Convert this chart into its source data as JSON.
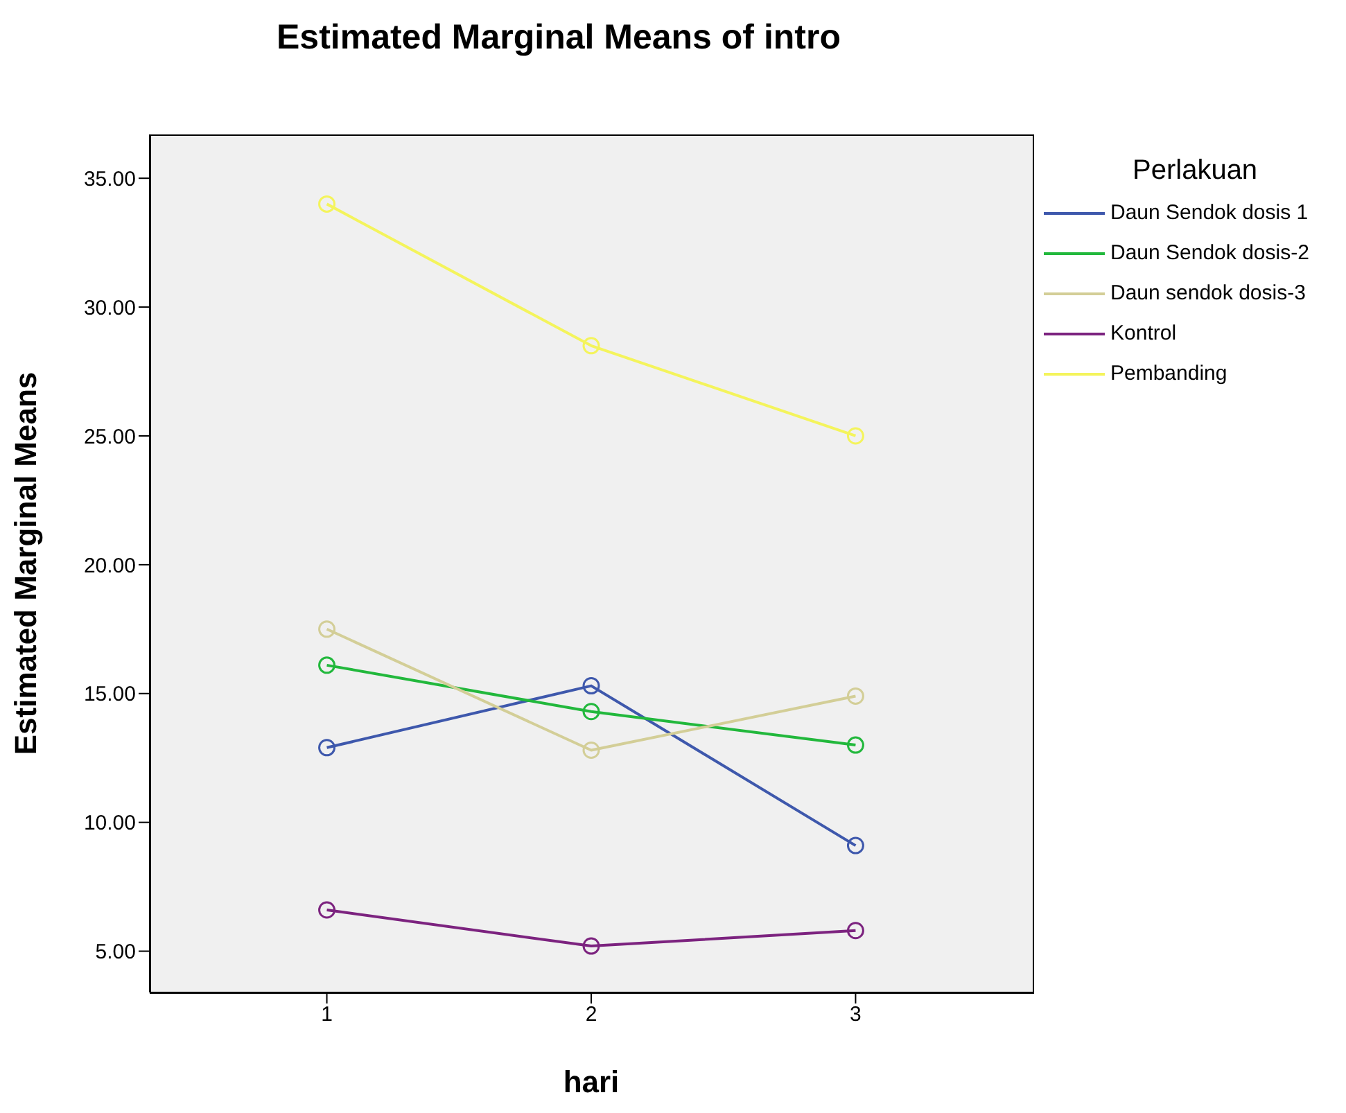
{
  "chart_data": {
    "type": "line",
    "title": "Estimated Marginal Means of intro",
    "xlabel": "hari",
    "ylabel": "Estimated Marginal Means",
    "legend_title": "Perlakuan",
    "legend": "right",
    "marker": "circle",
    "line_style": "solid",
    "x": [
      1,
      2,
      3
    ],
    "xlim": [
      0.33,
      3.67
    ],
    "xticks": [
      1,
      2,
      3
    ],
    "ylim": [
      3.4,
      36.7
    ],
    "yticks": [
      {
        "value": 5,
        "label": "5.00"
      },
      {
        "value": 10,
        "label": "10.00"
      },
      {
        "value": 15,
        "label": "15.00"
      },
      {
        "value": 20,
        "label": "20.00"
      },
      {
        "value": 25,
        "label": "25.00"
      },
      {
        "value": 30,
        "label": "30.00"
      },
      {
        "value": 35,
        "label": "35.00"
      }
    ],
    "series": [
      {
        "name": "Daun Sendok dosis 1",
        "color": "#3e58ac",
        "values": [
          12.9,
          15.3,
          9.1
        ]
      },
      {
        "name": "Daun Sendok dosis-2",
        "color": "#22b83c",
        "values": [
          16.1,
          14.3,
          13.0
        ]
      },
      {
        "name": "Daun sendok dosis-3",
        "color": "#d3ce97",
        "values": [
          17.5,
          12.8,
          14.9
        ]
      },
      {
        "name": "Kontrol",
        "color": "#7c237f",
        "values": [
          6.6,
          5.2,
          5.8
        ]
      },
      {
        "name": "Pembanding",
        "color": "#f4f45c",
        "values": [
          34.0,
          28.5,
          25.0
        ]
      }
    ]
  }
}
